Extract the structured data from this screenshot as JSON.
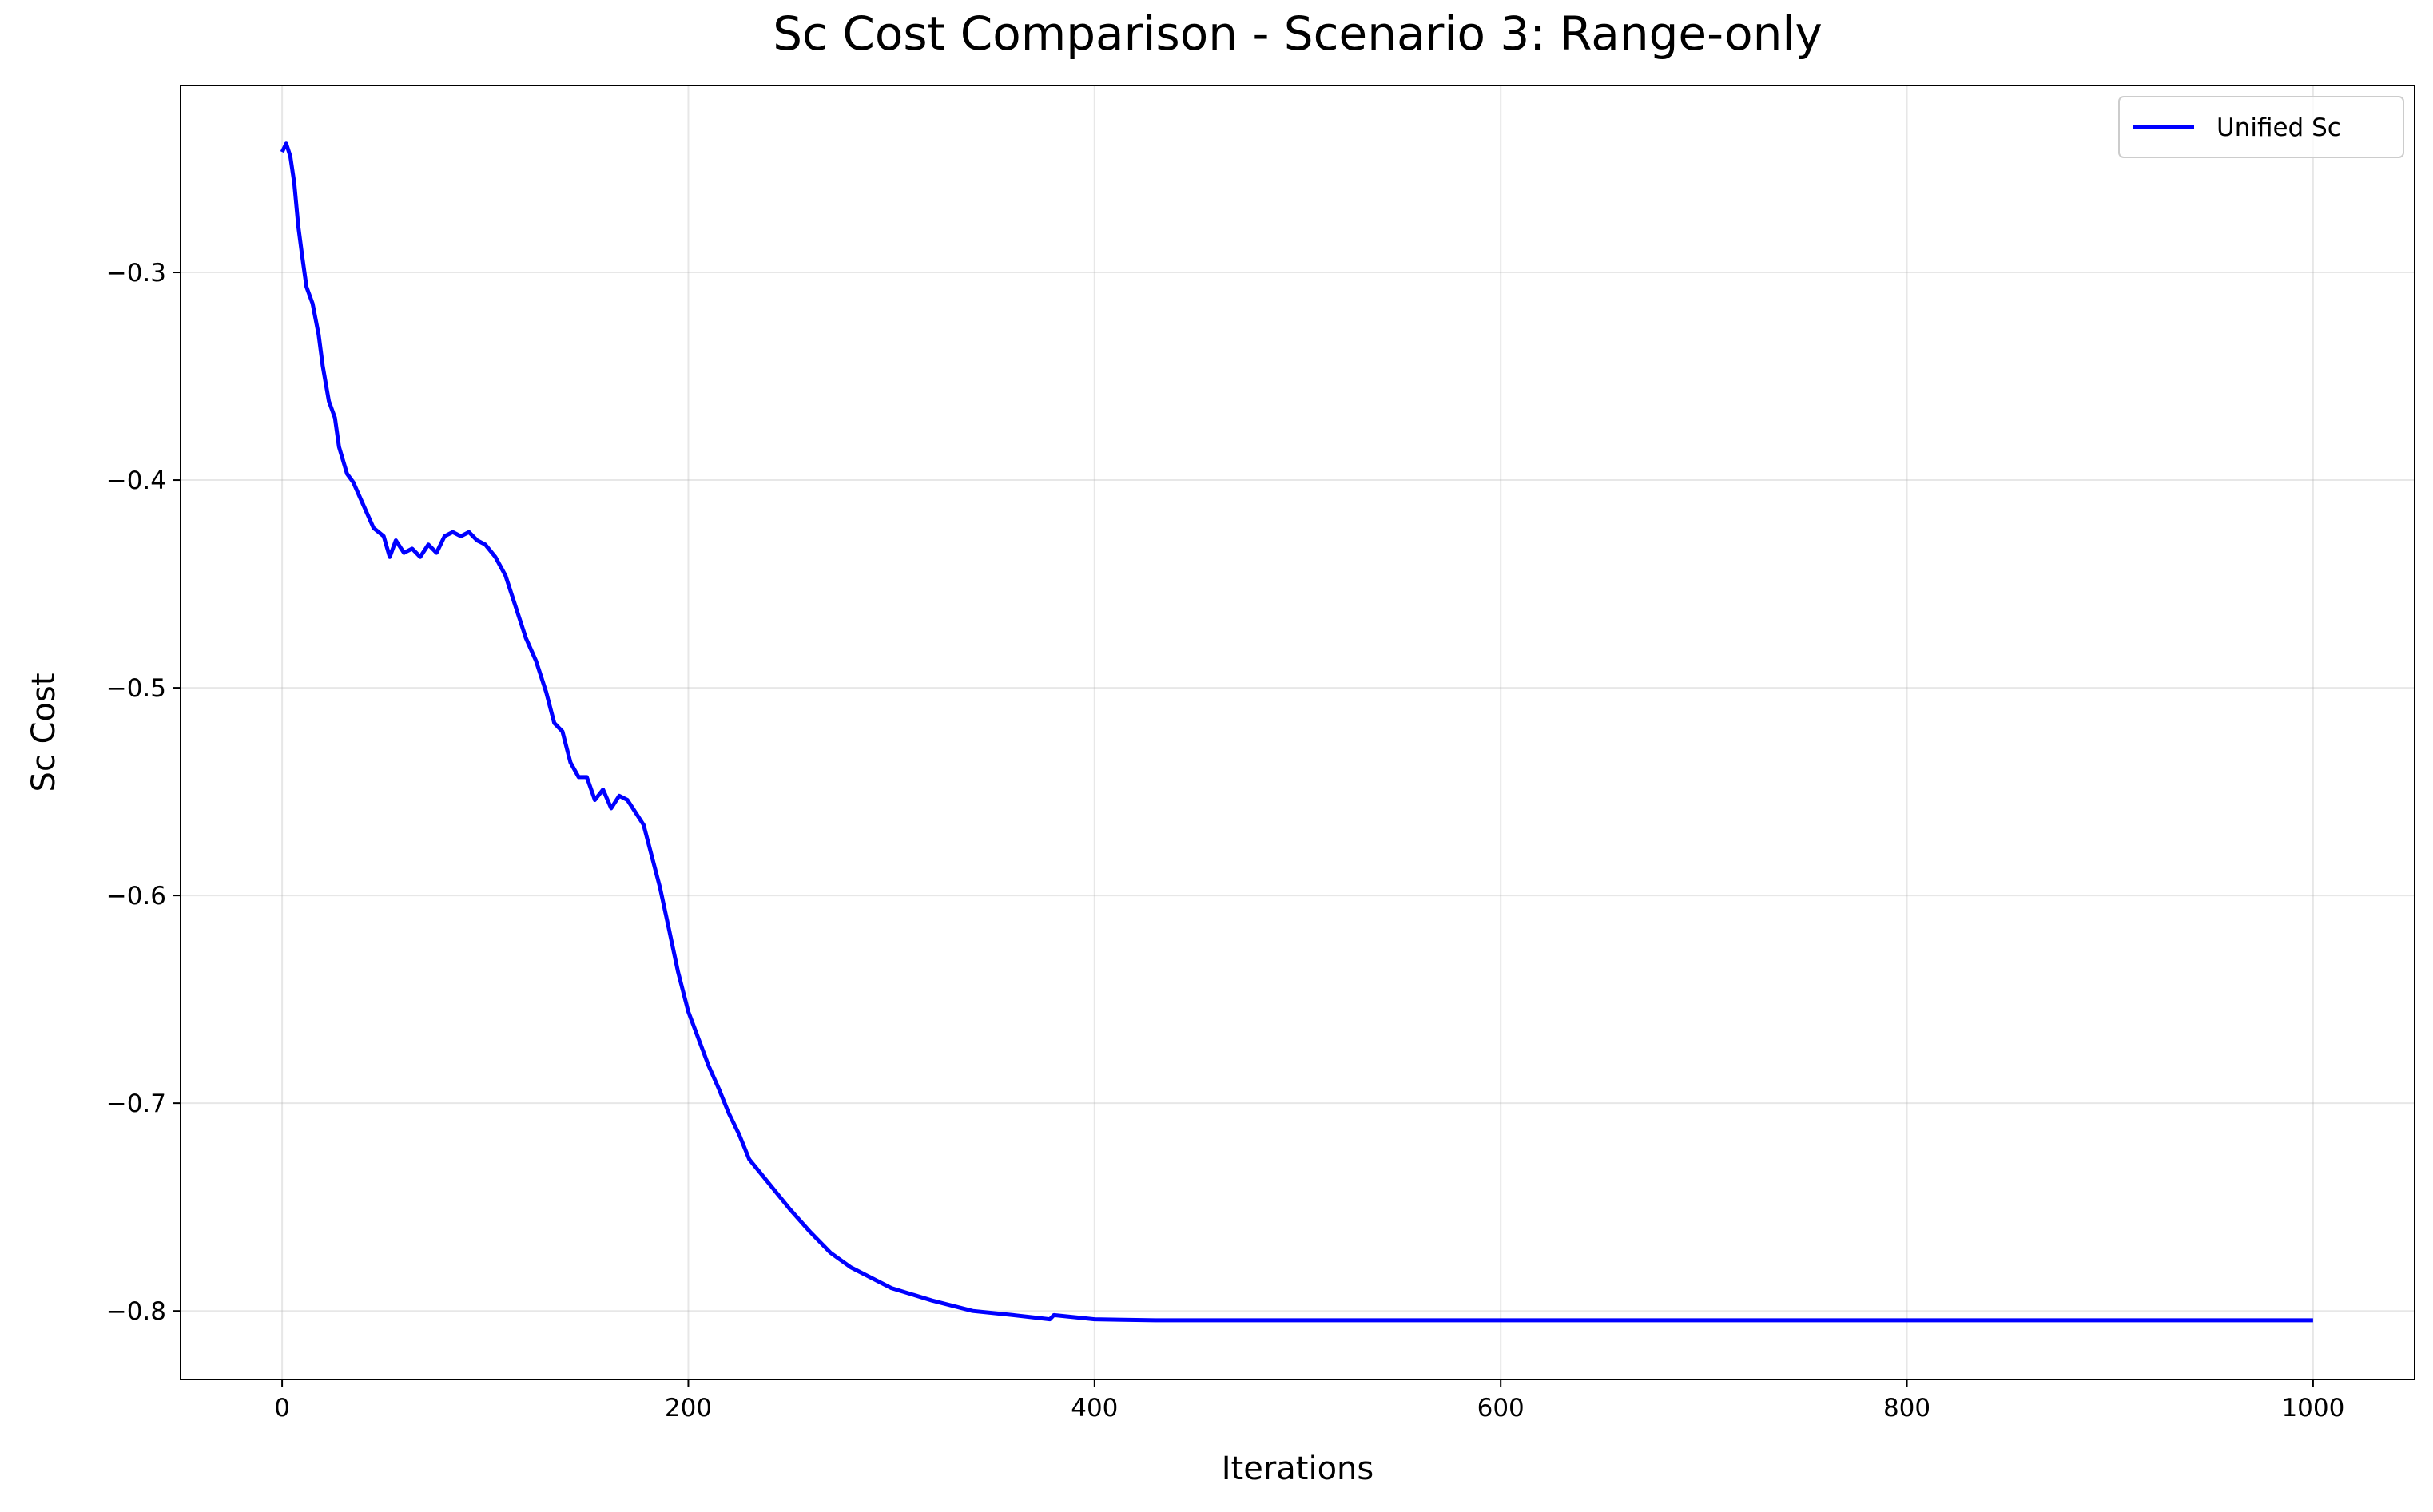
{
  "chart_data": {
    "type": "line",
    "title": "Sc Cost Comparison - Scenario 3: Range-only",
    "x_label": "Iterations",
    "y_label": "Sc Cost",
    "x": [
      0,
      2,
      4,
      6,
      8,
      10,
      12,
      15,
      18,
      20,
      23,
      26,
      28,
      32,
      35,
      40,
      45,
      50,
      53,
      56,
      60,
      64,
      68,
      72,
      76,
      80,
      84,
      88,
      92,
      96,
      100,
      105,
      110,
      115,
      120,
      125,
      130,
      134,
      138,
      142,
      146,
      150,
      154,
      158,
      162,
      166,
      170,
      174,
      178,
      182,
      186,
      190,
      195,
      200,
      205,
      210,
      215,
      220,
      225,
      230,
      240,
      250,
      260,
      270,
      280,
      290,
      300,
      320,
      340,
      360,
      378,
      380,
      400,
      430,
      500,
      1000
    ],
    "series": [
      {
        "name": "Unified Sc",
        "color": "#0000ff",
        "values": [
          -0.242,
          -0.238,
          -0.244,
          -0.257,
          -0.278,
          -0.293,
          -0.307,
          -0.315,
          -0.33,
          -0.345,
          -0.362,
          -0.37,
          -0.384,
          -0.397,
          -0.401,
          -0.412,
          -0.423,
          -0.427,
          -0.437,
          -0.429,
          -0.435,
          -0.433,
          -0.437,
          -0.431,
          -0.435,
          -0.427,
          -0.425,
          -0.427,
          -0.425,
          -0.429,
          -0.431,
          -0.437,
          -0.446,
          -0.461,
          -0.476,
          -0.487,
          -0.502,
          -0.517,
          -0.521,
          -0.536,
          -0.543,
          -0.543,
          -0.554,
          -0.549,
          -0.558,
          -0.552,
          -0.554,
          -0.56,
          -0.566,
          -0.581,
          -0.596,
          -0.614,
          -0.637,
          -0.656,
          -0.669,
          -0.682,
          -0.693,
          -0.705,
          -0.715,
          -0.727,
          -0.739,
          -0.751,
          -0.762,
          -0.772,
          -0.779,
          -0.784,
          -0.789,
          -0.795,
          -0.8,
          -0.802,
          -0.804,
          -0.802,
          -0.804,
          -0.8045,
          -0.8045,
          -0.8045
        ]
      }
    ],
    "xlim": [
      -50,
      1050
    ],
    "ylim": [
      -0.833,
      -0.21
    ],
    "xticks": [
      0,
      200,
      400,
      600,
      800,
      1000
    ],
    "yticks": [
      {
        "value": -0.3,
        "label": "−0.3"
      },
      {
        "value": -0.4,
        "label": "−0.4"
      },
      {
        "value": -0.5,
        "label": "−0.5"
      },
      {
        "value": -0.6,
        "label": "−0.6"
      },
      {
        "value": -0.7,
        "label": "−0.7"
      },
      {
        "value": -0.8,
        "label": "−0.8"
      }
    ],
    "grid": true,
    "legend": "upper right"
  }
}
